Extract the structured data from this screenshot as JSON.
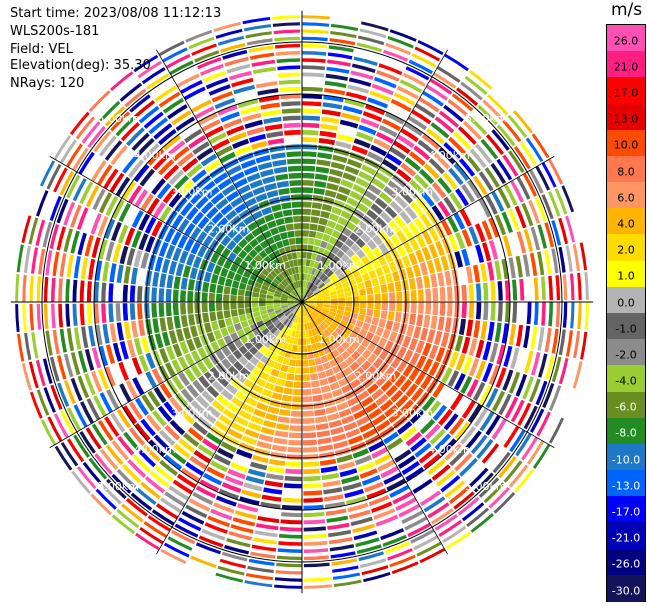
{
  "header": {
    "start_time": "Start time: 2023/08/08 11:12:13",
    "instrument": "WLS200s-181",
    "field": "Field: VEL",
    "elevation": "Elevation(deg): 35.30",
    "nrays": "NRays: 120"
  },
  "colorbar": {
    "unit": "m/s",
    "ticks": [
      "26.0",
      "21.0",
      "17.0",
      "13.0",
      "10.0",
      "8.0",
      "6.0",
      "4.0",
      "2.0",
      "1.0",
      "0.0",
      "-1.0",
      "-2.0",
      "-4.0",
      "-6.0",
      "-8.0",
      "-10.0",
      "-13.0",
      "-17.0",
      "-21.0",
      "-26.0",
      "-30.0"
    ],
    "colors": [
      "#ff50b4",
      "#ff1e82",
      "#ff0000",
      "#e60000",
      "#ff4b00",
      "#ff7850",
      "#ff9664",
      "#ffb400",
      "#ffdc00",
      "#ffff00",
      "#b4b4b4",
      "#646464",
      "#8c8c8c",
      "#9acd32",
      "#6b8e23",
      "#228b22",
      "#1e78c8",
      "#0064ff",
      "#0000ff",
      "#0000b4",
      "#000080",
      "#14145a"
    ]
  },
  "chart_data": {
    "type": "heatmap",
    "title": "",
    "projection": "polar PPI",
    "field": "VEL",
    "units": "m/s",
    "nrays": 120,
    "elevation_deg": 35.3,
    "range_rings_km": [
      1.0,
      2.0,
      3.0,
      4.0,
      5.0
    ],
    "range_ring_labels": [
      "1.00km",
      "2.00km",
      "3.00km",
      "4.00km",
      "5.00km"
    ],
    "max_range_km": 5.6,
    "rays_drawn": 60,
    "range_gates": 40,
    "valid_range_km": 3.1,
    "velocity_pattern": {
      "north_west": "negative (-4 to -10 m/s, blue/green)",
      "south_east": "positive (2 to 13 m/s, yellow/orange/red)",
      "beyond_3km": "noise"
    }
  }
}
